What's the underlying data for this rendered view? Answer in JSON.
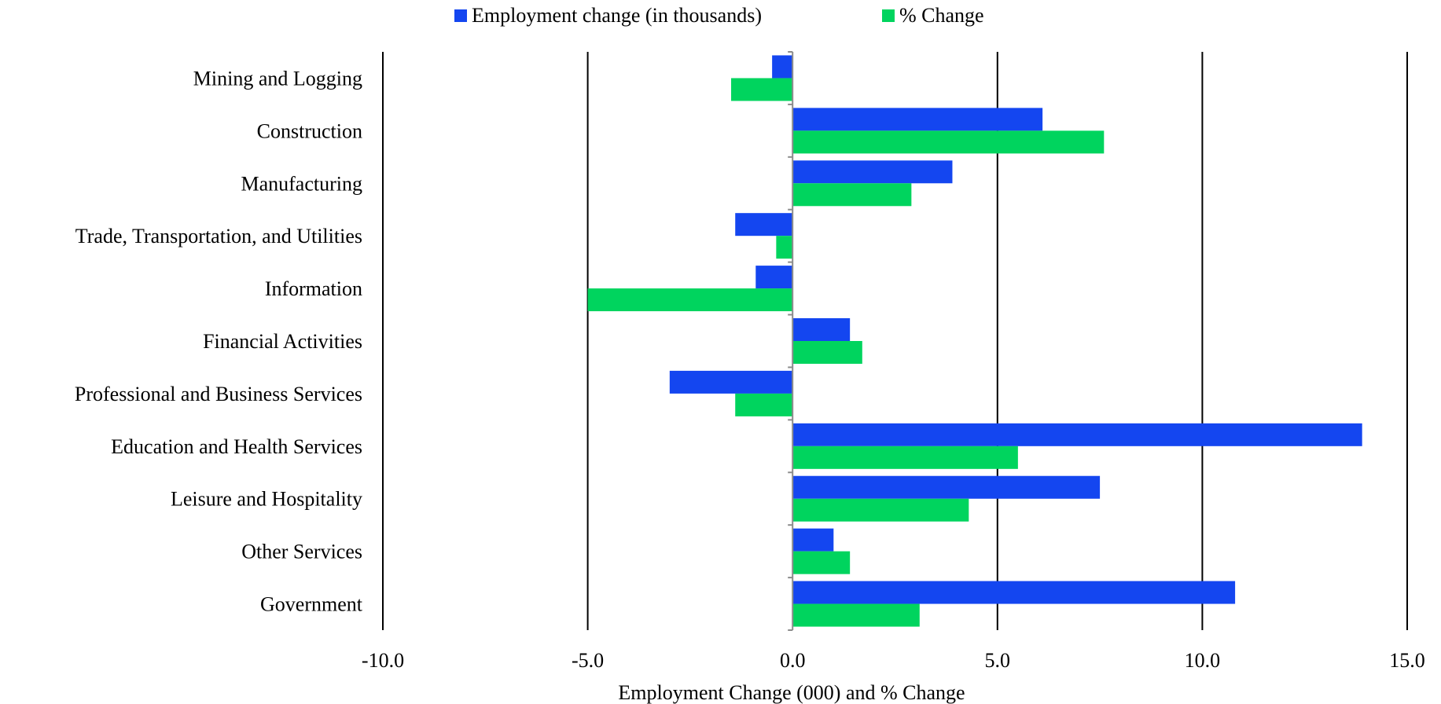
{
  "chart_data": {
    "type": "bar",
    "orientation": "horizontal",
    "categories": [
      "Mining and Logging",
      "Construction",
      "Manufacturing",
      "Trade, Transportation, and Utilities",
      "Information",
      "Financial Activities",
      "Professional and Business Services",
      "Education and Health Services",
      "Leisure and Hospitality",
      "Other Services",
      "Government"
    ],
    "series": [
      {
        "name": "Employment change (in thousands)",
        "color": "#1446f0",
        "values": [
          -0.5,
          6.1,
          3.9,
          -1.4,
          -0.9,
          1.4,
          -3.0,
          13.9,
          7.5,
          1.0,
          10.8
        ]
      },
      {
        "name": "% Change",
        "color": "#00d45e",
        "values": [
          -1.5,
          7.6,
          2.9,
          -0.4,
          -5.0,
          1.7,
          -1.4,
          5.5,
          4.3,
          1.4,
          3.1
        ]
      }
    ],
    "xlim": [
      -10.0,
      15.0
    ],
    "xticks": [
      "-10.0",
      "-5.0",
      "0.0",
      "5.0",
      "10.0",
      "15.0"
    ],
    "xtick_values": [
      -10,
      -5,
      0,
      5,
      10,
      15
    ],
    "xlabel": "Employment Change (000) and % Change",
    "ylabel": "",
    "title": "",
    "grid": "vertical",
    "legend": "top-center"
  }
}
